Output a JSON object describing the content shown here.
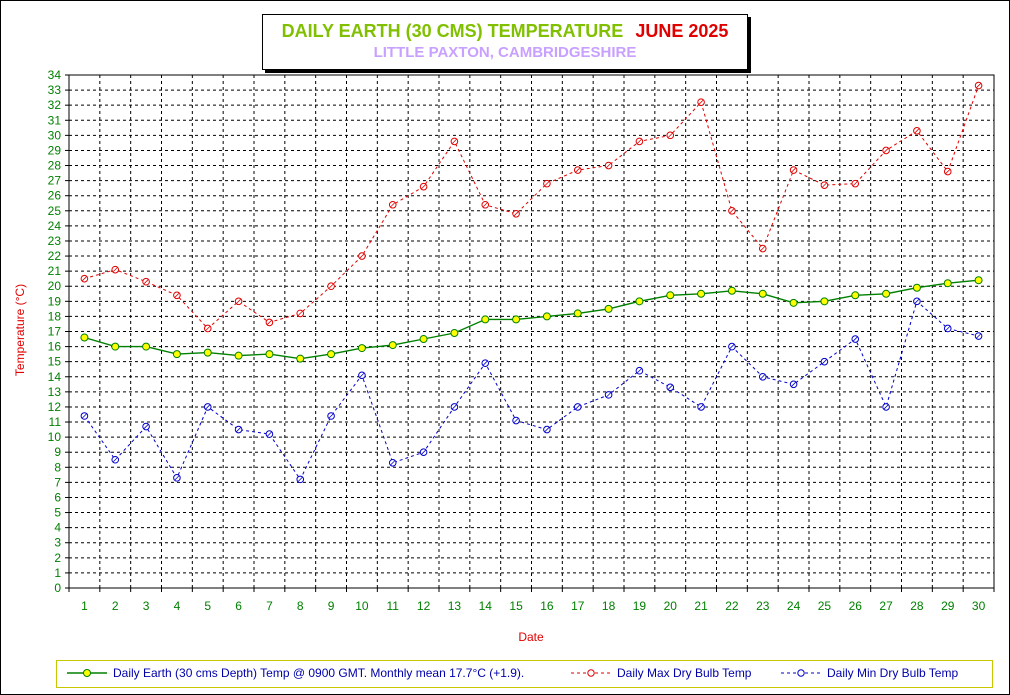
{
  "title": "DAILY EARTH (30 CMS) TEMPERATURE",
  "title_month": "JUNE 2025",
  "subtitle": "LITTLE PAXTON, CAMBRIDGESHIRE",
  "colors": {
    "title": "#80c000",
    "title_month": "#e00000",
    "subtitle": "#c8a0ff",
    "earth": "#008000",
    "earth_marker": "#ffff00",
    "max": "#e00000",
    "min": "#0000cc",
    "axis_labels": "#008000",
    "axis_titles": "#e00000"
  },
  "chart_data": {
    "type": "line",
    "xlabel": "Date",
    "ylabel": "Temperature (°C)",
    "x": [
      1,
      2,
      3,
      4,
      5,
      6,
      7,
      8,
      9,
      10,
      11,
      12,
      13,
      14,
      15,
      16,
      17,
      18,
      19,
      20,
      21,
      22,
      23,
      24,
      25,
      26,
      27,
      28,
      29,
      30
    ],
    "ylim": [
      0,
      34
    ],
    "grid": true,
    "legend_position": "bottom",
    "series": [
      {
        "name": "Daily Earth (30 cms Depth) Temp @ 0900 GMT. Monthly mean 17.7°C (+1.9).",
        "values": [
          16.6,
          16.0,
          16.0,
          15.5,
          15.6,
          15.4,
          15.5,
          15.2,
          15.5,
          15.9,
          16.1,
          16.5,
          16.9,
          17.8,
          17.8,
          18.0,
          18.2,
          18.5,
          19.0,
          19.4,
          19.5,
          19.7,
          19.5,
          18.9,
          19.0,
          19.4,
          19.5,
          19.9,
          20.2,
          20.4
        ]
      },
      {
        "name": "Daily Max Dry Bulb Temp",
        "values": [
          20.5,
          21.1,
          20.3,
          19.4,
          17.2,
          19.0,
          17.6,
          18.2,
          20.0,
          22.0,
          25.4,
          26.6,
          29.6,
          25.4,
          24.8,
          26.8,
          27.7,
          28.0,
          29.6,
          30.0,
          32.2,
          25.0,
          22.5,
          27.7,
          26.7,
          26.8,
          29.0,
          30.3,
          27.6,
          33.3
        ]
      },
      {
        "name": "Daily Min Dry Bulb Temp",
        "values": [
          11.4,
          8.5,
          10.7,
          7.3,
          12.0,
          10.5,
          10.2,
          7.2,
          11.4,
          14.1,
          8.3,
          9.0,
          12.0,
          14.9,
          11.1,
          10.5,
          12.0,
          12.8,
          14.4,
          13.3,
          12.0,
          16.0,
          14.0,
          13.5,
          15.0,
          16.5,
          12.0,
          19.0,
          17.2,
          16.7
        ]
      }
    ]
  }
}
